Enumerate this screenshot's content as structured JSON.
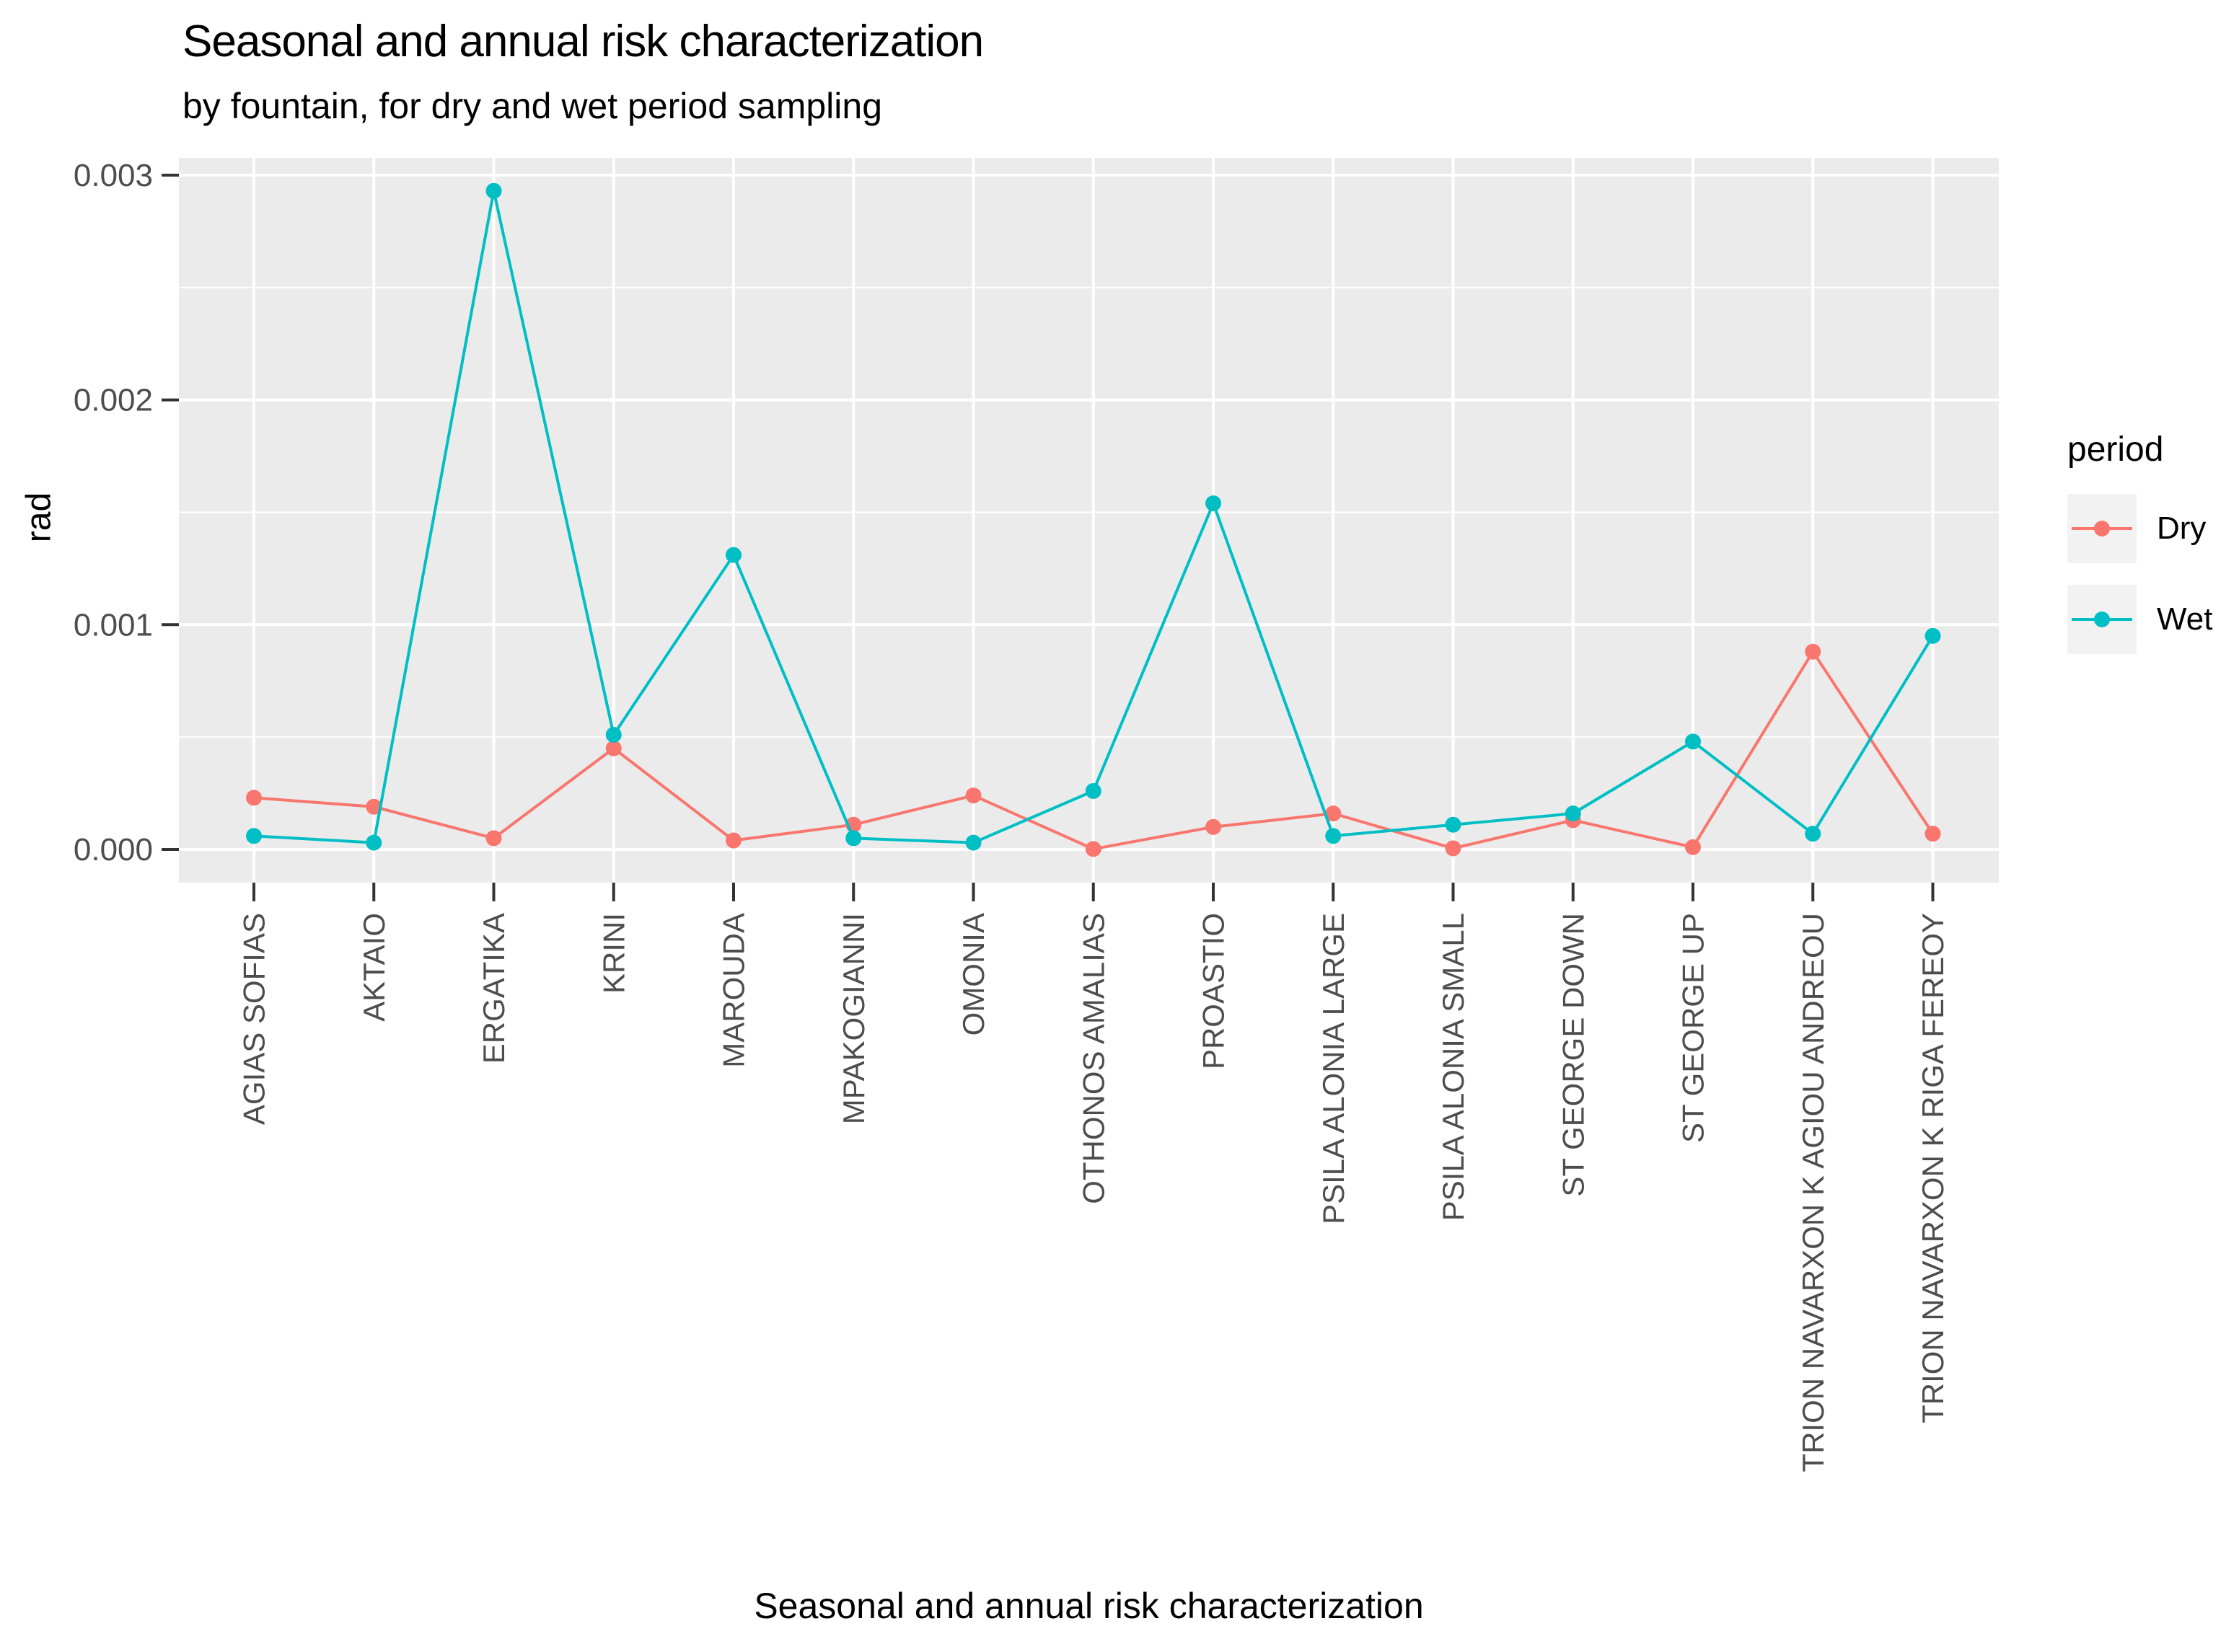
{
  "title": "Seasonal and annual risk characterization",
  "subtitle": "by fountain, for dry and wet period sampling",
  "chart_data": {
    "type": "line",
    "title": "Seasonal and annual risk characterization",
    "subtitle": "by fountain, for dry and wet period sampling",
    "xlabel": "Seasonal and annual risk characterization",
    "ylabel": "rad",
    "categories": [
      "AGIAS SOFIAS",
      "AKTAIO",
      "ERGATIKA",
      "KRINI",
      "MAROUDA",
      "MPAKOGIANNI",
      "OMONIA",
      "OTHONOS AMALIAS",
      "PROASTIO",
      "PSILA ALONIA LARGE",
      "PSILA ALONIA SMALL",
      "ST GEORGE DOWN",
      "ST GEORGE UP",
      "TRION NAVARXON K AGIOU ANDREOU",
      "TRION NAVARXON K RIGA FEREOY"
    ],
    "series": [
      {
        "name": "Dry",
        "color": "#F8766D",
        "values": [
          0.00023,
          0.00019,
          5e-05,
          0.00045,
          4e-05,
          0.00011,
          0.00024,
          2e-06,
          0.0001,
          0.00016,
          5e-06,
          0.00013,
          1e-05,
          0.00088,
          7e-05
        ]
      },
      {
        "name": "Wet",
        "color": "#00BFC4",
        "values": [
          6e-05,
          3e-05,
          0.00293,
          0.00051,
          0.00131,
          5e-05,
          3e-05,
          0.00026,
          0.00154,
          6e-05,
          0.00011,
          0.00016,
          0.00048,
          7e-05,
          0.00095
        ]
      }
    ],
    "yticks": [
      0.0,
      0.001,
      0.002,
      0.003
    ],
    "ytick_labels": [
      "0.000",
      "0.001",
      "0.002",
      "0.003"
    ],
    "yminor": [
      0.0005,
      0.0015,
      0.0025
    ],
    "ylim": [
      -0.00015,
      0.00308
    ],
    "grid": "major and minor horizontal white lines, vertical white line per category",
    "legend_position": "right",
    "panel_bg": "#EBEBEB",
    "grid_color": "#FFFFFF",
    "axis_text_color": "#4D4D4D",
    "tick_color": "#333333"
  },
  "legend": {
    "title": "period",
    "items": [
      {
        "label": "Dry",
        "color": "#F8766D"
      },
      {
        "label": "Wet",
        "color": "#00BFC4"
      }
    ]
  }
}
